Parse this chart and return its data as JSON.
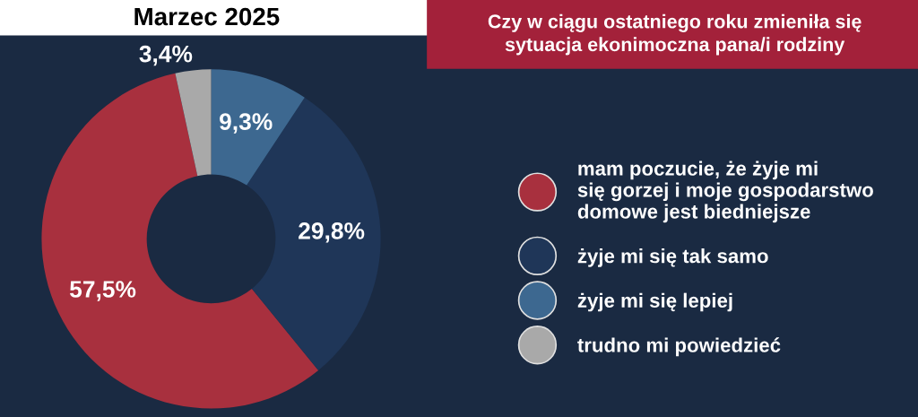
{
  "chart_data": {
    "type": "donut",
    "title": "Marzec 2025",
    "subtitle": "Czy w ciągu ostatniego roku zmieniła się\nsytuacja ekonimoczna pana/i rodziny",
    "categories": [
      "mam poczucie, że żyje mi\nsię gorzej i moje gospodarstwo\ndomowe jest biedniejsze",
      "żyje mi się tak samo",
      "żyje mi się lepiej",
      "trudno mi powiedzieć"
    ],
    "values": [
      57.5,
      29.8,
      9.3,
      3.4
    ],
    "colors": [
      "#a8303e",
      "#1f3658",
      "#3d6890",
      "#a9a9a9"
    ],
    "value_labels": [
      "57,5%",
      "29,8%",
      "9,3%",
      "3,4%"
    ],
    "legend": "right"
  }
}
